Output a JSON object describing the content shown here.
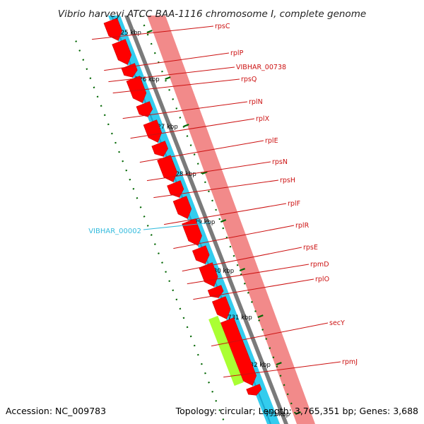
{
  "title": "Vibrio harveyi ATCC BAA-1116 chromosome I, complete genome",
  "accession": "Accession: NC_009783",
  "topology": "Topology: circular; Length: 3,765,351 bp; Genes: 3,688",
  "ticks": [
    "725 kbp",
    "726 kbp",
    "727 kbp",
    "728 kbp",
    "729 kbp",
    "730 kbp",
    "731 kbp",
    "732 kbp",
    "733 kbp"
  ],
  "reverse_feature_label": "VIBHAR_00002",
  "gene_labels": [
    "rpsC",
    "rplP",
    "VIBHAR_00738",
    "rpsQ",
    "rplN",
    "rplX",
    "rplE",
    "rpsN",
    "rpsH",
    "rplF",
    "rplR",
    "rpsE",
    "rpmD",
    "rplO",
    "secY",
    "rpmJ"
  ],
  "colors": {
    "cds": "#ff0000",
    "cds_outline": "#cc0000",
    "gene_band": "#f28a8a",
    "reverse_strand": "#33ccee",
    "backbone": "#888888",
    "secY": "#aaff33",
    "tick": "#006600",
    "label": "#cc1111",
    "reverse_label": "#33bbdd"
  }
}
